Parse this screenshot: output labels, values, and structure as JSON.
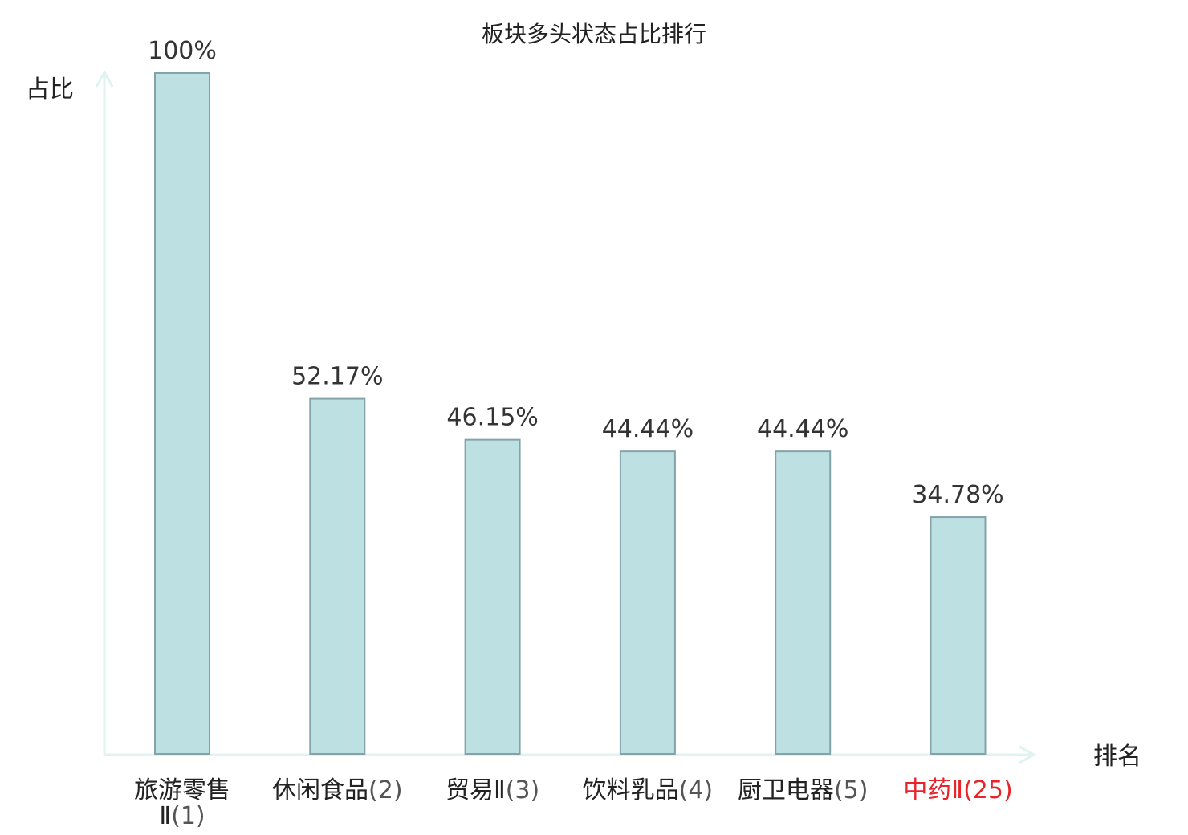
{
  "chart_data": {
    "type": "bar",
    "title": "板块多头状态占比排行",
    "ylabel": "占比",
    "xlabel": "排名",
    "ylim": [
      0,
      100
    ],
    "grid": false,
    "categories": [
      {
        "name": "旅游零售Ⅱ",
        "rank": "(1)"
      },
      {
        "name": "休闲食品",
        "rank": "(2)"
      },
      {
        "name": "贸易Ⅱ",
        "rank": "(3)"
      },
      {
        "name": "饮料乳品",
        "rank": "(4)"
      },
      {
        "name": "厨卫电器",
        "rank": "(5)"
      },
      {
        "name": "中药Ⅱ",
        "rank": "(25)"
      }
    ],
    "values": [
      100,
      52.17,
      46.15,
      44.44,
      44.44,
      34.78
    ],
    "value_labels": [
      "100%",
      "52.17%",
      "46.15%",
      "44.44%",
      "44.44%",
      "34.78%"
    ],
    "highlight_index": 5,
    "colors": {
      "bar_fill": "#bde0e3",
      "bar_stroke": "#84a3a8",
      "axis": "#e0f3f0",
      "highlight_text": "#e8232a"
    }
  }
}
